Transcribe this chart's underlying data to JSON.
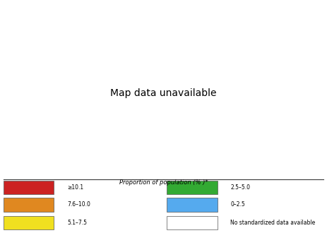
{
  "title": "Proportion of population (% )*",
  "legend_categories": [
    {
      "label": "≥10.1",
      "color": "#cc2222"
    },
    {
      "label": "7.6–10.0",
      "color": "#e08820"
    },
    {
      "label": "5.1–7.5",
      "color": "#f0e020"
    },
    {
      "label": "2.5–5.0",
      "color": "#33aa33"
    },
    {
      "label": "0–2.5",
      "color": "#55aaee"
    },
    {
      "label": "No standardized data available",
      "color": "#ffffff"
    }
  ],
  "country_colors": {
    "Canada": "#cc2222",
    "United States of America": "#cc2222",
    "United States": "#cc2222",
    "USA": "#cc2222",
    "Mexico": "#33aa33",
    "Guatemala": "#33aa33",
    "Belize": "#ffffff",
    "Honduras": "#ffffff",
    "El Salvador": "#ffffff",
    "Nicaragua": "#ffffff",
    "Costa Rica": "#cc2222",
    "Panama": "#cc2222",
    "Cuba": "#f0e020",
    "Jamaica": "#cc2222",
    "Haiti": "#ffffff",
    "Dominican Rep.": "#ffffff",
    "Dominican Republic": "#ffffff",
    "Trinidad and Tobago": "#ffffff",
    "Colombia": "#cc2222",
    "Venezuela": "#cc2222",
    "Guyana": "#ffffff",
    "Suriname": "#ffffff",
    "Ecuador": "#f0e020",
    "Peru": "#cc2222",
    "Brazil": "#cc2222",
    "Bolivia": "#f0e020",
    "Chile": "#f0e020",
    "Argentina": "#cc2222",
    "Uruguay": "#cc2222",
    "Paraguay": "#f0e020",
    "Iceland": "#ffffff",
    "Norway": "#f0e020",
    "Sweden": "#f0e020",
    "Finland": "#33aa33",
    "Denmark": "#f0e020",
    "United Kingdom": "#cc2222",
    "Ireland": "#cc2222",
    "Netherlands": "#f0e020",
    "Belgium": "#33aa33",
    "Luxembourg": "#ffffff",
    "France": "#33aa33",
    "Spain": "#33aa33",
    "Portugal": "#33aa33",
    "Germany": "#33aa33",
    "Switzerland": "#33aa33",
    "Austria": "#33aa33",
    "Italy": "#33aa33",
    "Greece": "#33aa33",
    "Poland": "#33aa33",
    "Czech Rep.": "#33aa33",
    "Czech Republic": "#33aa33",
    "Czechia": "#33aa33",
    "Slovakia": "#ffffff",
    "Hungary": "#33aa33",
    "Romania": "#33aa33",
    "Bulgaria": "#33aa33",
    "Serbia": "#ffffff",
    "Croatia": "#ffffff",
    "Slovenia": "#ffffff",
    "Bosnia and Herz.": "#ffffff",
    "Bosnia and Herzegovina": "#ffffff",
    "Albania": "#ffffff",
    "North Macedonia": "#ffffff",
    "Macedonia": "#ffffff",
    "Montenegro": "#ffffff",
    "Kosovo": "#ffffff",
    "Estonia": "#ffffff",
    "Latvia": "#ffffff",
    "Lithuania": "#ffffff",
    "Belarus": "#ffffff",
    "Ukraine": "#33aa33",
    "Moldova": "#ffffff",
    "Russia": "#55aaee",
    "Kazakhstan": "#55aaee",
    "Mongolia": "#55aaee",
    "China": "#55aaee",
    "Japan": "#f0e020",
    "South Korea": "#33aa33",
    "Korea, South": "#33aa33",
    "Dem. Rep. Korea": "#55aaee",
    "North Korea": "#55aaee",
    "Korea, North": "#55aaee",
    "Taiwan": "#f0e020",
    "Turkey": "#f0e020",
    "Georgia": "#ffffff",
    "Armenia": "#ffffff",
    "Azerbaijan": "#ffffff",
    "Turkmenistan": "#55aaee",
    "Uzbekistan": "#55aaee",
    "Kyrgyzstan": "#55aaee",
    "Tajikistan": "#55aaee",
    "Afghanistan": "#ffffff",
    "Pakistan": "#33aa33",
    "India": "#33aa33",
    "Nepal": "#ffffff",
    "Bhutan": "#ffffff",
    "Bangladesh": "#ffffff",
    "Sri Lanka": "#33aa33",
    "Myanmar": "#33aa33",
    "Thailand": "#33aa33",
    "Laos": "#ffffff",
    "Vietnam": "#33aa33",
    "Cambodia": "#ffffff",
    "Malaysia": "#33aa33",
    "Singapore": "#55aaee",
    "Indonesia": "#33aa33",
    "Philippines": "#33aa33",
    "Papua New Guinea": "#ffffff",
    "Australia": "#cc2222",
    "New Zealand": "#cc2222",
    "Syria": "#f0e020",
    "Iraq": "#f0e020",
    "Iran": "#f0e020",
    "Saudi Arabia": "#f0e020",
    "Yemen": "#ffffff",
    "Oman": "#ffffff",
    "United Arab Emirates": "#ffffff",
    "Qatar": "#ffffff",
    "Kuwait": "#ffffff",
    "Jordan": "#f0e020",
    "Israel": "#33aa33",
    "Lebanon": "#ffffff",
    "Egypt": "#f0e020",
    "Libya": "#ffffff",
    "Tunisia": "#f0e020",
    "Algeria": "#ffffff",
    "Morocco": "#f0e020",
    "W. Sahara": "#ffffff",
    "Mauritania": "#ffffff",
    "Mali": "#ffffff",
    "Niger": "#ffffff",
    "Chad": "#ffffff",
    "Sudan": "#ffffff",
    "S. Sudan": "#ffffff",
    "South Sudan": "#ffffff",
    "Ethiopia": "#ffffff",
    "Eritrea": "#ffffff",
    "Djibouti": "#ffffff",
    "Somalia": "#ffffff",
    "Kenya": "#33aa33",
    "Uganda": "#ffffff",
    "Tanzania": "#ffffff",
    "Rwanda": "#ffffff",
    "Burundi": "#ffffff",
    "Dem. Rep. Congo": "#ffffff",
    "Democratic Republic of the Congo": "#ffffff",
    "Congo": "#ffffff",
    "Republic of the Congo": "#ffffff",
    "Cameroon": "#ffffff",
    "Nigeria": "#ffffff",
    "Ghana": "#33aa33",
    "Côte d'Ivoire": "#ffffff",
    "Ivory Coast": "#ffffff",
    "Senegal": "#ffffff",
    "Guinea": "#ffffff",
    "Sierra Leone": "#ffffff",
    "Liberia": "#ffffff",
    "Togo": "#ffffff",
    "Benin": "#ffffff",
    "Burkina Faso": "#ffffff",
    "Gambia": "#ffffff",
    "Guinea-Bissau": "#ffffff",
    "Cape Verde": "#ffffff",
    "Gabon": "#e08820",
    "Eq. Guinea": "#ffffff",
    "Equatorial Guinea": "#ffffff",
    "Central African Rep.": "#ffffff",
    "Central African Republic": "#ffffff",
    "Angola": "#ffffff",
    "Zambia": "#ffffff",
    "Malawi": "#ffffff",
    "Mozambique": "#ffffff",
    "Zimbabwe": "#ffffff",
    "Botswana": "#ffffff",
    "Namibia": "#ffffff",
    "South Africa": "#e08820",
    "Lesotho": "#ffffff",
    "Swaziland": "#ffffff",
    "Madagascar": "#ffffff",
    "Eswatini": "#ffffff"
  },
  "background_color": "#ffffff",
  "border_color": "#888888",
  "ocean_color": "#ffffff",
  "fig_bg": "#ffffff"
}
